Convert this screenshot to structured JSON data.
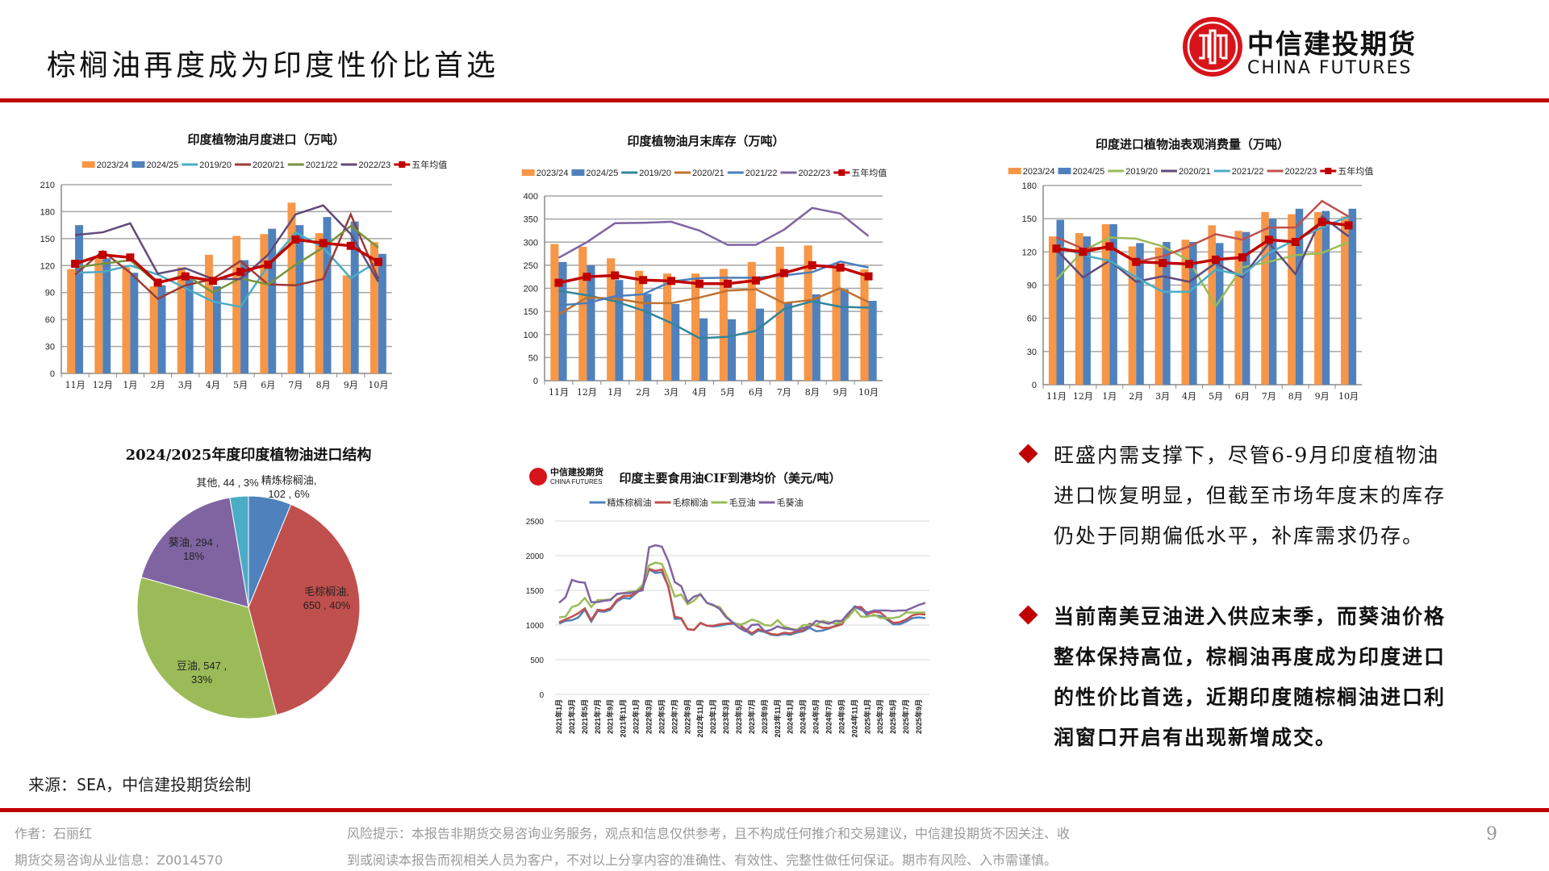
{
  "header": {
    "title": "棕榈油再度成为印度性价比首选",
    "logo_cn": "中信建投期货",
    "logo_en": "CHINA FUTURES",
    "accent_color": "#c00000"
  },
  "chart_data": [
    {
      "type": "bar+line",
      "title": "印度植物油月度进口（万吨）",
      "categories": [
        "11月",
        "12月",
        "1月",
        "2月",
        "3月",
        "4月",
        "5月",
        "6月",
        "7月",
        "8月",
        "9月",
        "10月"
      ],
      "ylim": [
        0,
        210
      ],
      "ystep": 30,
      "grid": true,
      "legend": "top",
      "series": [
        {
          "name": "2023/24",
          "kind": "bar",
          "color": "#f79646",
          "values": [
            116,
            130,
            118,
            97,
            118,
            132,
            153,
            155,
            190,
            156,
            109,
            146
          ]
        },
        {
          "name": "2024/25",
          "kind": "bar",
          "color": "#4f81bd",
          "values": [
            165,
            128,
            112,
            98,
            108,
            97,
            126,
            161,
            165,
            174,
            169,
            133
          ]
        },
        {
          "name": "2019/20",
          "kind": "line",
          "color": "#4bacc6",
          "values": [
            112,
            113,
            120,
            110,
            95,
            80,
            74,
            120,
            157,
            140,
            106,
            125
          ]
        },
        {
          "name": "2020/21",
          "kind": "line",
          "color": "#9b3b36",
          "values": [
            110,
            136,
            112,
            83,
            98,
            105,
            125,
            99,
            98,
            105,
            177,
            105
          ]
        },
        {
          "name": "2021/22",
          "kind": "line",
          "color": "#77933c",
          "values": [
            118,
            122,
            126,
            100,
            110,
            90,
            106,
            99,
            121,
            140,
            164,
            140
          ]
        },
        {
          "name": "2022/23",
          "kind": "line",
          "color": "#604a7b",
          "values": [
            154,
            157,
            167,
            111,
            117,
            105,
            105,
            132,
            177,
            187,
            155,
            102
          ]
        },
        {
          "name": "五年均值",
          "kind": "line",
          "marker": "square",
          "color": "#c00000",
          "values": [
            122,
            132,
            129,
            101,
            108,
            103,
            113,
            121,
            149,
            145,
            142,
            124
          ]
        }
      ]
    },
    {
      "type": "bar+line",
      "title": "印度植物油月末库存（万吨）",
      "categories": [
        "11月",
        "12月",
        "1月",
        "2月",
        "3月",
        "4月",
        "5月",
        "6月",
        "7月",
        "8月",
        "9月",
        "10月"
      ],
      "ylim": [
        0,
        400
      ],
      "ystep": 50,
      "grid": true,
      "legend": "top",
      "series": [
        {
          "name": "2023/24",
          "kind": "bar",
          "color": "#f79646",
          "values": [
            296,
            290,
            265,
            238,
            232,
            232,
            242,
            257,
            290,
            293,
            248,
            241
          ]
        },
        {
          "name": "2024/25",
          "kind": "bar",
          "color": "#4f81bd",
          "values": [
            257,
            250,
            218,
            188,
            166,
            135,
            133,
            156,
            170,
            187,
            198,
            173
          ]
        },
        {
          "name": "2019/20",
          "kind": "line",
          "color": "#31859c",
          "values": [
            195,
            185,
            172,
            152,
            125,
            92,
            95,
            108,
            155,
            172,
            160,
            158
          ]
        },
        {
          "name": "2020/21",
          "kind": "line",
          "color": "#c0722f",
          "values": [
            143,
            180,
            178,
            168,
            168,
            180,
            195,
            198,
            168,
            175,
            200,
            170
          ]
        },
        {
          "name": "2021/22",
          "kind": "line",
          "color": "#4a7ebb",
          "values": [
            163,
            168,
            183,
            187,
            215,
            222,
            223,
            223,
            228,
            235,
            258,
            245
          ]
        },
        {
          "name": "2022/23",
          "kind": "line",
          "color": "#8064a2",
          "values": [
            266,
            300,
            341,
            342,
            344,
            325,
            294,
            294,
            327,
            374,
            362,
            313
          ]
        },
        {
          "name": "五年均值",
          "kind": "line",
          "marker": "square",
          "color": "#c00000",
          "values": [
            212,
            225,
            228,
            218,
            216,
            210,
            210,
            217,
            233,
            250,
            245,
            226
          ]
        }
      ]
    },
    {
      "type": "bar+line",
      "title": "印度进口植物油表观消费量（万吨）",
      "categories": [
        "11月",
        "12月",
        "1月",
        "2月",
        "3月",
        "4月",
        "5月",
        "6月",
        "7月",
        "8月",
        "9月",
        "10月"
      ],
      "ylim": [
        0,
        180
      ],
      "ystep": 30,
      "grid": true,
      "legend": "top",
      "series": [
        {
          "name": "2023/24",
          "kind": "bar",
          "color": "#f79646",
          "values": [
            134,
            137,
            145,
            125,
            124,
            131,
            144,
            139,
            156,
            154,
            156,
            152
          ]
        },
        {
          "name": "2024/25",
          "kind": "bar",
          "color": "#4f81bd",
          "values": [
            149,
            134,
            145,
            128,
            129,
            129,
            128,
            138,
            150,
            159,
            157,
            159
          ]
        },
        {
          "name": "2019/20",
          "kind": "line",
          "color": "#9bbb59",
          "values": [
            95,
            121,
            133,
            132,
            125,
            112,
            71,
            106,
            111,
            117,
            119,
            129
          ]
        },
        {
          "name": "2020/21",
          "kind": "line",
          "color": "#604a7b",
          "values": [
            122,
            97,
            112,
            93,
            98,
            93,
            110,
            97,
            128,
            100,
            152,
            134
          ]
        },
        {
          "name": "2021/22",
          "kind": "line",
          "color": "#4bacc6",
          "values": [
            126,
            117,
            112,
            97,
            84,
            84,
            104,
            99,
            119,
            131,
            142,
            152
          ]
        },
        {
          "name": "2022/23",
          "kind": "line",
          "color": "#c0504d",
          "values": [
            133,
            123,
            124,
            111,
            116,
            125,
            136,
            131,
            142,
            142,
            166,
            152
          ]
        },
        {
          "name": "五年均值",
          "kind": "line",
          "marker": "square",
          "color": "#c00000",
          "values": [
            123,
            120,
            125,
            111,
            110,
            109,
            113,
            115,
            131,
            129,
            147,
            144
          ]
        }
      ]
    },
    {
      "type": "pie",
      "title": "2024/2025年度印度植物油进口结构",
      "slices": [
        {
          "name": "精炼棕榈油",
          "value": 102,
          "pct": "6%",
          "color": "#4f81bd",
          "label": [
            "精炼棕榈油,",
            "102 , 6%"
          ]
        },
        {
          "name": "毛棕榈油",
          "value": 650,
          "pct": "40%",
          "color": "#c0504d",
          "label": [
            "毛棕榈油,",
            "650 , 40%"
          ]
        },
        {
          "name": "豆油",
          "value": 547,
          "pct": "33%",
          "color": "#9bbb59",
          "label": [
            "豆油, 547 ,",
            "33%"
          ]
        },
        {
          "name": "葵油",
          "value": 294,
          "pct": "18%",
          "color": "#8064a2",
          "label": [
            "葵油, 294 ,",
            "18%"
          ]
        },
        {
          "name": "其他",
          "value": 44,
          "pct": "3%",
          "color": "#4bacc6",
          "label": [
            "其他, 44 , 3%"
          ]
        }
      ]
    },
    {
      "type": "line",
      "title": "印度主要食用油CIF到港均价（美元/吨）",
      "logo_cn": "中信建投期货",
      "logo_en": "CHINA FUTURES",
      "ylim": [
        0,
        2500
      ],
      "ystep": 500,
      "grid": true,
      "legend": "top",
      "x_start": "2021年1月",
      "xtick_labels": [
        "2021年1月",
        "2021年3月",
        "2021年5月",
        "2021年7月",
        "2021年9月",
        "2021年11月",
        "2022年1月",
        "2022年3月",
        "2022年5月",
        "2022年7月",
        "2022年9月",
        "2022年11月",
        "2023年1月",
        "2023年3月",
        "2023年5月",
        "2023年7月",
        "2023年9月",
        "2023年11月",
        "2024年1月",
        "2024年3月",
        "2024年5月",
        "2024年7月",
        "2024年9月",
        "2024年11月",
        "2025年1月",
        "2025年3月",
        "2025年5月",
        "2025年7月",
        "2025年9月"
      ],
      "series": [
        {
          "name": "精炼棕榈油",
          "color": "#4f81bd",
          "values": [
            1020,
            1060,
            1070,
            1110,
            1220,
            1050,
            1200,
            1190,
            1220,
            1340,
            1390,
            1380,
            1460,
            1530,
            1800,
            1750,
            1760,
            1560,
            1090,
            1090,
            940,
            930,
            1030,
            990,
            980,
            990,
            1010,
            1020,
            1010,
            920,
            860,
            920,
            900,
            860,
            850,
            870,
            860,
            890,
            910,
            960,
            910,
            920,
            950,
            990,
            1050,
            1150,
            1270,
            1240,
            1130,
            1140,
            1130,
            1080,
            1010,
            1010,
            1050,
            1100,
            1110,
            1100
          ]
        },
        {
          "name": "毛棕榈油",
          "color": "#c0504d",
          "values": [
            1040,
            1080,
            1120,
            1170,
            1240,
            1070,
            1220,
            1210,
            1240,
            1360,
            1420,
            1420,
            1460,
            1550,
            1810,
            1780,
            1800,
            1550,
            1120,
            1100,
            940,
            930,
            1030,
            990,
            990,
            1010,
            1020,
            1030,
            1010,
            940,
            880,
            940,
            910,
            870,
            860,
            890,
            880,
            910,
            920,
            1020,
            990,
            960,
            960,
            980,
            1010,
            1140,
            1260,
            1260,
            1160,
            1190,
            1180,
            1100,
            1030,
            1040,
            1080,
            1140,
            1160,
            1150
          ]
        },
        {
          "name": "毛豆油",
          "color": "#9bbb59",
          "values": [
            1110,
            1120,
            1260,
            1290,
            1390,
            1260,
            1360,
            1360,
            1370,
            1440,
            1460,
            1480,
            1490,
            1580,
            1860,
            1900,
            1880,
            1660,
            1410,
            1440,
            1300,
            1350,
            1450,
            1320,
            1280,
            1260,
            1130,
            1040,
            1000,
            1030,
            1080,
            1050,
            1000,
            990,
            1070,
            980,
            950,
            930,
            1000,
            1000,
            1000,
            1060,
            1040,
            1020,
            1040,
            1110,
            1230,
            1120,
            1120,
            1150,
            1100,
            1100,
            1100,
            1120,
            1180,
            1180,
            1180,
            1180
          ]
        },
        {
          "name": "毛葵油",
          "color": "#8064a2",
          "values": [
            1320,
            1400,
            1650,
            1620,
            1610,
            1330,
            1330,
            1350,
            1360,
            1450,
            1460,
            1460,
            1480,
            1500,
            2120,
            2150,
            2130,
            1920,
            1620,
            1560,
            1330,
            1410,
            1440,
            1320,
            1290,
            1230,
            1110,
            1040,
            960,
            910,
            1000,
            1010,
            910,
            930,
            980,
            950,
            940,
            920,
            960,
            970,
            1060,
            1040,
            1020,
            1060,
            1060,
            1170,
            1260,
            1220,
            1180,
            1210,
            1210,
            1210,
            1200,
            1210,
            1210,
            1250,
            1290,
            1320
          ]
        }
      ]
    }
  ],
  "commentary": [
    {
      "lines": [
        "旺盛内需支撑下，尽管6-9月印度植物油",
        "进口恢复明显，但截至市场年度末的库存",
        "仍处于同期偏低水平，补库需求仍存。"
      ]
    },
    {
      "lines": [
        "当前南美豆油进入供应末季，而葵油价格",
        "整体保持高位，棕榈油再度成为印度进口",
        "的性价比首选，近期印度随棕榈油进口利",
        "润窗口开启有出现新增成交。"
      ]
    }
  ],
  "source": "来源：SEA，中信建投期货绘制",
  "footer": {
    "author": "作者：石丽红",
    "license": "期货交易咨询从业信息：Z0014570",
    "risk_line1": "风险提示：本报告非期货交易咨询业务服务，观点和信息仅供参考，且不构成任何推介和交易建议，中信建投期货不因关注、收",
    "risk_line2": "到或阅读本报告而视相关人员为客户，不对以上分享内容的准确性、有效性、完整性做任何保证。期市有风险、入市需谨慎。",
    "page": "9"
  }
}
